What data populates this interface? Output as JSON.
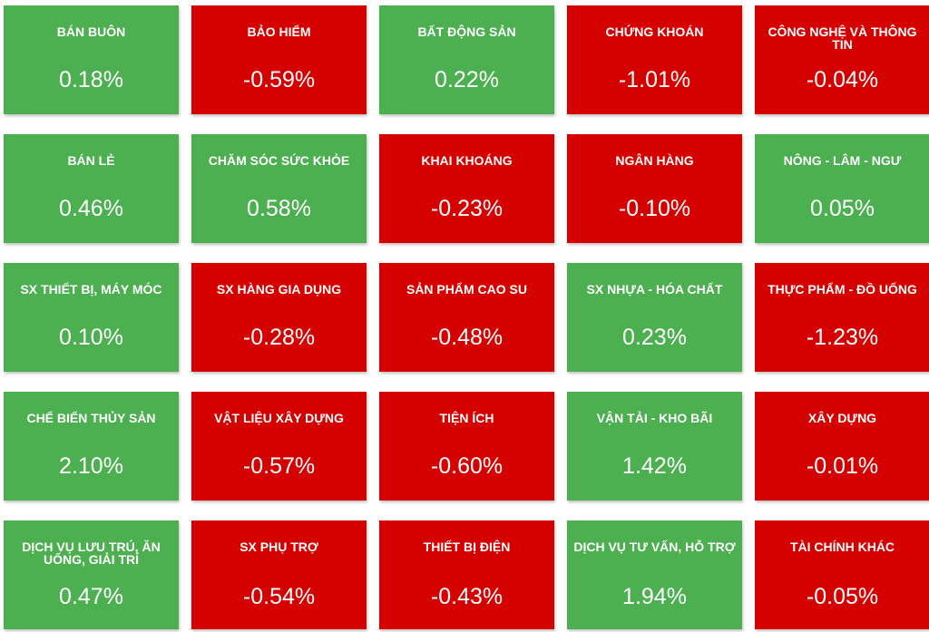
{
  "colors": {
    "positive": "#4caf50",
    "negative": "#d50000",
    "text": "#ffffff"
  },
  "tiles": [
    {
      "name": "BÁN BUÔN",
      "value": "0.18%",
      "trend": "up"
    },
    {
      "name": "BẢO HIỂM",
      "value": "-0.59%",
      "trend": "down"
    },
    {
      "name": "BẤT ĐỘNG SẢN",
      "value": "0.22%",
      "trend": "up"
    },
    {
      "name": "CHỨNG KHOÁN",
      "value": "-1.01%",
      "trend": "down"
    },
    {
      "name": "CÔNG NGHỆ VÀ THÔNG TIN",
      "value": "-0.04%",
      "trend": "down"
    },
    {
      "name": "BÁN LẺ",
      "value": "0.46%",
      "trend": "up"
    },
    {
      "name": "CHĂM SÓC SỨC KHỎE",
      "value": "0.58%",
      "trend": "up"
    },
    {
      "name": "KHAI KHOÁNG",
      "value": "-0.23%",
      "trend": "down"
    },
    {
      "name": "NGÂN HÀNG",
      "value": "-0.10%",
      "trend": "down"
    },
    {
      "name": "NÔNG - LÂM - NGƯ",
      "value": "0.05%",
      "trend": "up"
    },
    {
      "name": "SX THIẾT BỊ, MÁY MÓC",
      "value": "0.10%",
      "trend": "up"
    },
    {
      "name": "SX HÀNG GIA DỤNG",
      "value": "-0.28%",
      "trend": "down"
    },
    {
      "name": "SẢN PHẨM CAO SU",
      "value": "-0.48%",
      "trend": "down"
    },
    {
      "name": "SX NHỰA - HÓA CHẤT",
      "value": "0.23%",
      "trend": "up"
    },
    {
      "name": "THỰC PHẨM - ĐỒ UỐNG",
      "value": "-1.23%",
      "trend": "down"
    },
    {
      "name": "CHẾ BIẾN THỦY SẢN",
      "value": "2.10%",
      "trend": "up"
    },
    {
      "name": "VẬT LIỆU XÂY DỰNG",
      "value": "-0.57%",
      "trend": "down"
    },
    {
      "name": "TIỆN ÍCH",
      "value": "-0.60%",
      "trend": "down"
    },
    {
      "name": "VẬN TẢI - KHO BÃI",
      "value": "1.42%",
      "trend": "up"
    },
    {
      "name": "XÂY DỰNG",
      "value": "-0.01%",
      "trend": "down"
    },
    {
      "name": "DỊCH VỤ LƯU TRÚ, ĂN UỐNG, GIẢI TRÍ",
      "value": "0.47%",
      "trend": "up"
    },
    {
      "name": "SX PHỤ TRỢ",
      "value": "-0.54%",
      "trend": "down"
    },
    {
      "name": "THIẾT BỊ ĐIỆN",
      "value": "-0.43%",
      "trend": "down"
    },
    {
      "name": "DỊCH VỤ TƯ VẤN, HỖ TRỢ",
      "value": "1.94%",
      "trend": "up"
    },
    {
      "name": "TÀI CHÍNH KHÁC",
      "value": "-0.05%",
      "trend": "down"
    }
  ]
}
